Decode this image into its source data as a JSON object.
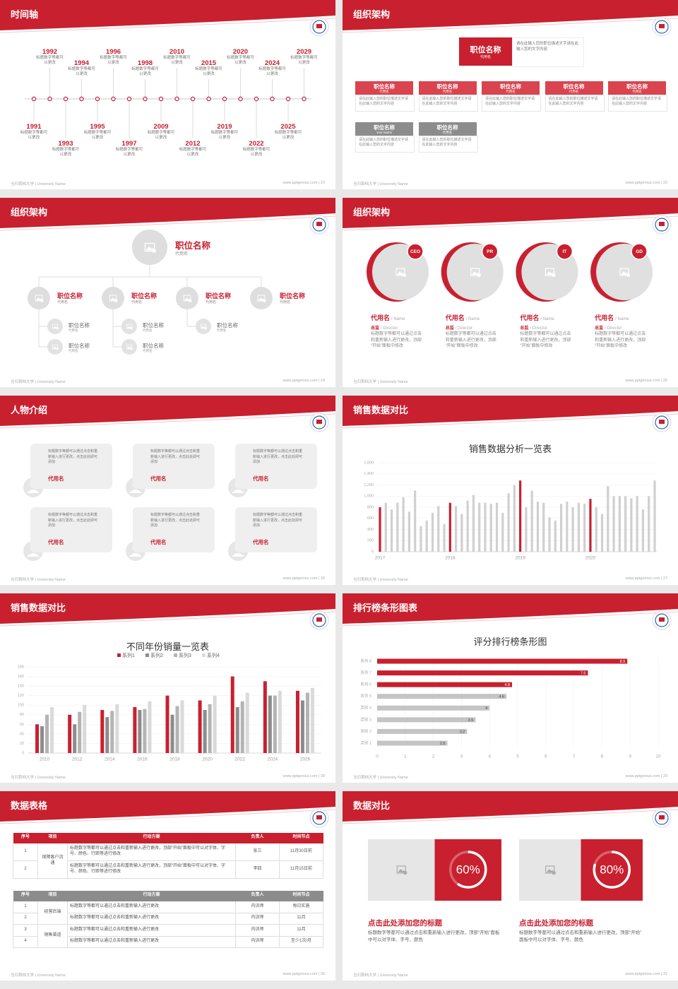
{
  "footer_left": "当归首档大学 | University Name",
  "slides": [
    {
      "title": "时间轴",
      "footer_right": "www.pptgenius.com | 22",
      "timeline": [
        {
          "year": "1991",
          "text": "标题数字等都可以更改"
        },
        {
          "year": "1992",
          "text": "标题数字等都可以更改"
        },
        {
          "year": "1993",
          "text": "标题数字等都可以更改"
        },
        {
          "year": "1994",
          "text": "标题数字等都可以更改"
        },
        {
          "year": "1995",
          "text": "标题数字等都可以更改"
        },
        {
          "year": "1996",
          "text": "标题数字等都可以更改"
        },
        {
          "year": "1997",
          "text": "标题数字等都可以更改"
        },
        {
          "year": "1998",
          "text": "标题数字等都可以更改"
        },
        {
          "year": "2009",
          "text": "标题数字等都可以更改"
        },
        {
          "year": "2010",
          "text": "标题数字等都可以更改"
        },
        {
          "year": "2012",
          "text": "标题数字等都可以更改"
        },
        {
          "year": "2015",
          "text": "标题数字等都可以更改"
        },
        {
          "year": "2019",
          "text": "标题数字等都可以更改"
        },
        {
          "year": "2020",
          "text": "标题数字等都可以更改"
        },
        {
          "year": "2022",
          "text": "标题数字等都可以更改"
        },
        {
          "year": "2024",
          "text": "标题数字等都可以更改"
        },
        {
          "year": "2025",
          "text": "标题数字等都可以更改"
        },
        {
          "year": "2029",
          "text": "标题数字等都可以更改"
        }
      ]
    },
    {
      "title": "组织架构",
      "footer_right": "www.pptgenius.com | 23",
      "head": {
        "title": "职位名称",
        "subtitle": "代用名",
        "desc": "请在此输入您的职位描述文字请在此输入您的文字内容"
      },
      "boxes": [
        {
          "title": "职位名称",
          "subtitle": "代用名",
          "desc": "请在此输入您的职位描述文字请在此输入您的文字内容",
          "color": "#d9444f"
        },
        {
          "title": "职位名称",
          "subtitle": "代用名",
          "desc": "请在此输入您的职位描述文字请在此输入您的文字内容",
          "color": "#d9444f"
        },
        {
          "title": "职位名称",
          "subtitle": "代用名",
          "desc": "请在此输入您的职位描述文字请在此输入您的文字内容",
          "color": "#d9444f"
        },
        {
          "title": "职位名称",
          "subtitle": "代用名",
          "desc": "请在此输入您的职位描述文字请在此输入您的文字内容",
          "color": "#d9444f"
        },
        {
          "title": "职位名称",
          "subtitle": "代用名",
          "desc": "请在此输入您的职位描述文字请在此输入您的文字内容",
          "color": "#d9444f"
        },
        {
          "title": "职位名称",
          "subtitle": "Your Name",
          "desc": "请在此输入您的职位描述文字请在此输入您的文字内容",
          "color": "#8c8c8c"
        },
        {
          "title": "职位名称",
          "subtitle": "代用名",
          "desc": "请在此输入您的职位描述文字请在此输入您的文字内容",
          "color": "#8c8c8c"
        }
      ]
    },
    {
      "title": "组织架构",
      "footer_right": "www.pptgenius.com | 24",
      "top": {
        "title": "职位名称",
        "subtitle": "代用名"
      },
      "groups": [
        {
          "title": "职位名称",
          "subtitle": "代用名",
          "children": [
            {
              "title": "职位名称",
              "subtitle": "代用名"
            },
            {
              "title": "职位名称",
              "subtitle": "代用名"
            }
          ]
        },
        {
          "title": "职位名称",
          "subtitle": "代用名",
          "children": [
            {
              "title": "职位名称",
              "subtitle": "代用名"
            },
            {
              "title": "职位名称",
              "subtitle": "代用名"
            }
          ]
        },
        {
          "title": "职位名称",
          "subtitle": "代用名",
          "children": [
            {
              "title": "职位名称",
              "subtitle": "代用名"
            }
          ]
        },
        {
          "title": "职位名称",
          "subtitle": "代用名",
          "children": []
        }
      ]
    },
    {
      "title": "组织架构",
      "footer_right": "www.pptgenius.com | 25",
      "people": [
        {
          "badge": "CEO",
          "name": "代用名",
          "name_en": "/ Name",
          "role": "总监",
          "role_en": "/ Director",
          "desc": "标题数字等都可以通过点击和重新输入进行更改，顶部“开始”面板中修改"
        },
        {
          "badge": "PR",
          "name": "代用名",
          "name_en": "/ Name",
          "role": "总监",
          "role_en": "/ Director",
          "desc": "标题数字等都可以通过点击和重新输入进行更改，顶部“开始”面板中修改"
        },
        {
          "badge": "IT",
          "name": "代用名",
          "name_en": "/ Name",
          "role": "总监",
          "role_en": "/ Director",
          "desc": "标题数字等都可以通过点击和重新输入进行更改，顶部“开始”面板中修改"
        },
        {
          "badge": "GD",
          "name": "代用名",
          "name_en": "/ Name",
          "role": "总监",
          "role_en": "/ Director",
          "desc": "标题数字等都可以通过点击和重新输入进行更改，顶部“开始”面板中修改"
        }
      ]
    },
    {
      "title": "人物介绍",
      "footer_right": "www.pptgenius.com | 26",
      "quotes": [
        {
          "text": "标题数字等都可以通过点击和重新输入进行更改，点击此处即可添加",
          "name": "代用名"
        },
        {
          "text": "标题数字等都可以通过点击和重新输入进行更改，点击此处即可添加",
          "name": "代用名"
        },
        {
          "text": "标题数字等都可以通过点击和重新输入进行更改，点击此处即可添加",
          "name": "代用名"
        },
        {
          "text": "标题数字等都可以通过点击和重新输入进行更改，点击此处即可添加",
          "name": "代用名"
        },
        {
          "text": "标题数字等都可以通过点击和重新输入进行更改，点击此处即可添加",
          "name": "代用名"
        },
        {
          "text": "标题数字等都可以通过点击和重新输入进行更改，点击此处即可添加",
          "name": "代用名"
        }
      ]
    },
    {
      "title": "销售数据对比",
      "footer_right": "www.pptgenius.com | 27",
      "chart_data": {
        "type": "bar",
        "title": "销售数据分析一览表",
        "categories": [
          "2017",
          null,
          null,
          null,
          null,
          null,
          null,
          null,
          null,
          null,
          null,
          null,
          "2018",
          null,
          null,
          null,
          null,
          null,
          null,
          null,
          null,
          null,
          null,
          null,
          "2019",
          null,
          null,
          null,
          null,
          null,
          null,
          null,
          null,
          null,
          null,
          null,
          "2020",
          null,
          null,
          null,
          null,
          null,
          null,
          null,
          null,
          null,
          null,
          null
        ],
        "values": [
          800,
          880,
          760,
          880,
          980,
          720,
          1100,
          460,
          560,
          700,
          820,
          500,
          880,
          820,
          680,
          920,
          1020,
          880,
          880,
          860,
          880,
          700,
          1050,
          1200,
          1280,
          800,
          1100,
          900,
          880,
          620,
          560,
          860,
          900,
          800,
          880,
          860,
          950,
          800,
          680,
          1180,
          1000,
          1000,
          1000,
          960,
          1000,
          760,
          1000,
          1280
        ],
        "colors": [
          "#c8202f",
          "#d0d0d0",
          "#d0d0d0",
          "#d0d0d0",
          "#d0d0d0",
          "#d0d0d0",
          "#d0d0d0",
          "#d0d0d0",
          "#d0d0d0",
          "#d0d0d0",
          "#d0d0d0",
          "#d0d0d0",
          "#c8202f",
          "#d0d0d0",
          "#d0d0d0",
          "#d0d0d0",
          "#d0d0d0",
          "#d0d0d0",
          "#d0d0d0",
          "#d0d0d0",
          "#d0d0d0",
          "#d0d0d0",
          "#d0d0d0",
          "#d0d0d0",
          "#c8202f",
          "#d0d0d0",
          "#d0d0d0",
          "#d0d0d0",
          "#d0d0d0",
          "#d0d0d0",
          "#d0d0d0",
          "#d0d0d0",
          "#d0d0d0",
          "#d0d0d0",
          "#d0d0d0",
          "#d0d0d0",
          "#c8202f",
          "#d0d0d0",
          "#d0d0d0",
          "#d0d0d0",
          "#d0d0d0",
          "#d0d0d0",
          "#d0d0d0",
          "#d0d0d0",
          "#d0d0d0",
          "#d0d0d0",
          "#d0d0d0",
          "#d0d0d0"
        ],
        "ylim": [
          0,
          1600
        ],
        "yticks": [
          0,
          200,
          400,
          600,
          800,
          {
            "value": 1000,
            "label": "1,000"
          },
          {
            "value": 1200,
            "label": "1,200"
          },
          {
            "value": 1400,
            "label": "1,400"
          },
          {
            "value": 1600,
            "label": "1,600"
          }
        ],
        "grid": true
      }
    },
    {
      "title": "销售数据对比",
      "footer_right": "www.pptgenius.com | 28",
      "chart_data": {
        "type": "bar",
        "title": "不同年份销量一览表",
        "categories": [
          "2010",
          "2012",
          "2014",
          "2016",
          "2018",
          "2020",
          "2022",
          "2024",
          "2026"
        ],
        "series": [
          {
            "name": "系列1",
            "color": "#c8202f",
            "values": [
              60,
              80,
              90,
              96,
              120,
              110,
              160,
              150,
              130
            ]
          },
          {
            "name": "系列2",
            "color": "#8c8c8c",
            "values": [
              56,
              60,
              75,
              90,
              80,
              90,
              96,
              120,
              110
            ]
          },
          {
            "name": "系列3",
            "color": "#b4b4b4",
            "values": [
              80,
              86,
              88,
              92,
              98,
              102,
              108,
              120,
              126
            ]
          },
          {
            "name": "系列4",
            "color": "#dadada",
            "values": [
              96,
              100,
              102,
              108,
              110,
              120,
              126,
              130,
              136
            ]
          }
        ],
        "ylim": [
          0,
          180
        ],
        "yticks": [
          0,
          20,
          40,
          60,
          80,
          100,
          120,
          140,
          160,
          180
        ],
        "grid": true,
        "legend": "top"
      }
    },
    {
      "title": "排行榜条形图表",
      "footer_right": "www.pptgenius.com | 29",
      "chart_data": {
        "type": "barh",
        "title": "评分排行榜条形图",
        "categories": [
          "类别 1",
          "类别 2",
          "类别 3",
          "类别 4",
          "系列 5",
          "系列 6",
          "系列 7",
          "系列 8"
        ],
        "values": [
          2.5,
          3.2,
          3.5,
          4,
          4.6,
          4.8,
          7.5,
          8.9
        ],
        "colors": [
          "#c4c4c4",
          "#c4c4c4",
          "#c4c4c4",
          "#c4c4c4",
          "#c4c4c4",
          "#c8202f",
          "#c8202f",
          "#c8202f"
        ],
        "xlim": [
          0,
          10
        ],
        "xticks": [
          0,
          1,
          2,
          3,
          4,
          5,
          6,
          7,
          8,
          9,
          10
        ],
        "grid": true
      }
    },
    {
      "title": "数据表格",
      "footer_right": "www.pptgenius.com | 30",
      "tables": [
        {
          "color": "#c8202f",
          "header": [
            "序号",
            "项目",
            "行动方案",
            "负责人",
            "时间节点"
          ],
          "groups": [
            {
              "item": "保障客户流通",
              "rows": [
                [
                  "1",
                  "标题数字等都可以通过点击和重新输入进行更改，顶部“开始”面板中可以对字体、字号、颜色、行距等进行修改",
                  "张三",
                  "11月30日前"
                ],
                [
                  "2",
                  "标题数字等都可以通过点击和重新输入进行更改，顶部“开始”面板中可以对字体、字号、颜色、行距等进行修改",
                  "李四",
                  "11月15日前"
                ]
              ]
            }
          ]
        },
        {
          "color": "#8c8c8c",
          "header": [
            "序号",
            "项目",
            "行动方案",
            "负责人",
            "时间节点"
          ],
          "groups": [
            {
              "item": "经营后端",
              "rows": [
                [
                  "1",
                  "标题数字等都可以通过点击和重新输入进行更改",
                  "内训师",
                  "每日实施"
                ],
                [
                  "2",
                  "标题数字等都可以通过点击和重新输入进行更改",
                  "内训师",
                  "11月"
                ]
              ]
            },
            {
              "item": "销售渠道",
              "rows": [
                [
                  "3",
                  "标题数字等都可以通过点击和重新输入进行更改",
                  "内训师",
                  "11月"
                ],
                [
                  "4",
                  "标题数字等都可以通过点击和重新输入进行更改",
                  "内训师",
                  "至少1次/月"
                ]
              ]
            }
          ]
        }
      ]
    },
    {
      "title": "数据对比",
      "footer_right": "www.pptgenius.com | 31",
      "cards": [
        {
          "value": 60,
          "value_label": "60%",
          "title": "点击此处添加您的标题",
          "desc": "标题数字等都可以通过点击和重新输入进行更改，顶部“开始”面板中可以对字体、字号、颜色"
        },
        {
          "value": 80,
          "value_label": "80%",
          "title": "点击此处添加您的标题",
          "desc": "标题数字等都可以通过点击和重新输入进行更改，顶部“开始”面板中可以对字体、字号、颜色"
        }
      ]
    }
  ]
}
